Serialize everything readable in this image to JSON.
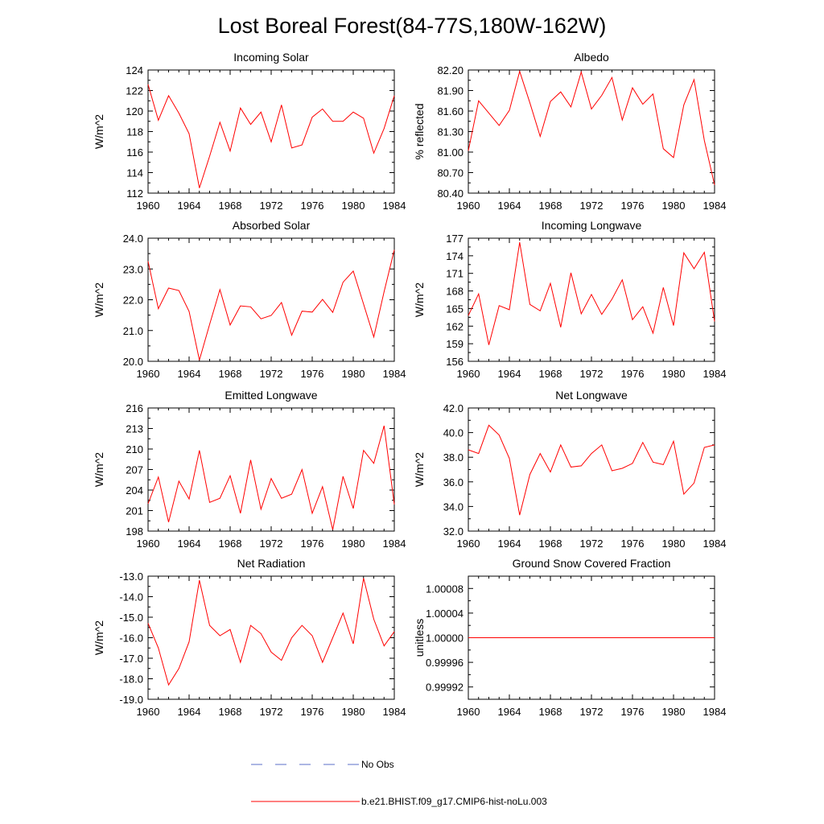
{
  "figure": {
    "title": "Lost Boreal Forest(84-77S,180W-162W)"
  },
  "legend": [
    {
      "label": "No Obs",
      "color": "#5b6fc9",
      "dash": "dashed"
    },
    {
      "label": "b.e21.BHIST.f09_g17.CMIP6-hist-noLu.003",
      "color": "#ff0000",
      "dash": "solid"
    }
  ],
  "chart_data": [
    {
      "type": "line",
      "title": "Incoming Solar",
      "ylabel": "W/m^2",
      "xlim": [
        1960,
        1984
      ],
      "ylim": [
        112,
        124
      ],
      "xticks": [
        1960,
        1964,
        1968,
        1972,
        1976,
        1980,
        1984
      ],
      "yticks": [
        "112",
        "114",
        "116",
        "118",
        "120",
        "122",
        "124"
      ],
      "series": [
        {
          "color": "#ff0000",
          "x": [
            1960,
            1961,
            1962,
            1963,
            1964,
            1965,
            1966,
            1967,
            1968,
            1969,
            1970,
            1971,
            1972,
            1973,
            1974,
            1975,
            1976,
            1977,
            1978,
            1979,
            1980,
            1981,
            1982,
            1983,
            1984
          ],
          "values": [
            122.6,
            119.1,
            121.5,
            119.8,
            117.8,
            112.5,
            115.6,
            118.9,
            116.1,
            120.3,
            118.7,
            119.9,
            117.0,
            120.6,
            116.4,
            116.7,
            119.4,
            120.2,
            119.0,
            119.0,
            119.9,
            119.3,
            115.9,
            118.3,
            121.5
          ]
        }
      ]
    },
    {
      "type": "line",
      "title": "Albedo",
      "ylabel": "% reflected",
      "xlim": [
        1960,
        1984
      ],
      "ylim": [
        80.4,
        82.2
      ],
      "xticks": [
        1960,
        1964,
        1968,
        1972,
        1976,
        1980,
        1984
      ],
      "yticks": [
        "80.40",
        "80.70",
        "81.00",
        "81.30",
        "81.60",
        "81.90",
        "82.20"
      ],
      "series": [
        {
          "color": "#ff0000",
          "x": [
            1960,
            1961,
            1962,
            1963,
            1964,
            1965,
            1966,
            1967,
            1968,
            1969,
            1970,
            1971,
            1972,
            1973,
            1974,
            1975,
            1976,
            1977,
            1978,
            1979,
            1980,
            1981,
            1982,
            1983,
            1984
          ],
          "values": [
            81.02,
            81.75,
            81.57,
            81.39,
            81.61,
            82.18,
            81.72,
            81.23,
            81.74,
            81.88,
            81.66,
            82.17,
            81.63,
            81.83,
            82.09,
            81.47,
            81.94,
            81.7,
            81.85,
            81.05,
            80.92,
            81.69,
            82.06,
            81.17,
            80.52
          ]
        }
      ]
    },
    {
      "type": "line",
      "title": "Absorbed Solar",
      "ylabel": "W/m^2",
      "xlim": [
        1960,
        1984
      ],
      "ylim": [
        20,
        24
      ],
      "xticks": [
        1960,
        1964,
        1968,
        1972,
        1976,
        1980,
        1984
      ],
      "yticks": [
        "20.0",
        "21.0",
        "22.0",
        "23.0",
        "24.0"
      ],
      "series": [
        {
          "color": "#ff0000",
          "x": [
            1960,
            1961,
            1962,
            1963,
            1964,
            1965,
            1966,
            1967,
            1968,
            1969,
            1970,
            1971,
            1972,
            1973,
            1974,
            1975,
            1976,
            1977,
            1978,
            1979,
            1980,
            1981,
            1982,
            1983,
            1984
          ],
          "values": [
            23.25,
            21.71,
            22.38,
            22.3,
            21.62,
            20.04,
            21.2,
            22.33,
            21.18,
            21.8,
            21.77,
            21.38,
            21.49,
            21.91,
            20.85,
            21.63,
            21.6,
            22.01,
            21.59,
            22.57,
            22.93,
            21.86,
            20.79,
            22.26,
            23.62
          ]
        }
      ]
    },
    {
      "type": "line",
      "title": "Incoming Longwave",
      "ylabel": "W/m^2",
      "xlim": [
        1960,
        1984
      ],
      "ylim": [
        156,
        177
      ],
      "xticks": [
        1960,
        1964,
        1968,
        1972,
        1976,
        1980,
        1984
      ],
      "yticks": [
        "156",
        "159",
        "162",
        "165",
        "168",
        "171",
        "174",
        "177"
      ],
      "series": [
        {
          "color": "#ff0000",
          "x": [
            1960,
            1961,
            1962,
            1963,
            1964,
            1965,
            1966,
            1967,
            1968,
            1969,
            1970,
            1971,
            1972,
            1973,
            1974,
            1975,
            1976,
            1977,
            1978,
            1979,
            1980,
            1981,
            1982,
            1983,
            1984
          ],
          "values": [
            163.8,
            167.5,
            158.8,
            165.5,
            164.8,
            176.3,
            165.7,
            164.6,
            169.3,
            161.8,
            171.1,
            164.1,
            167.4,
            164.0,
            166.6,
            169.9,
            163.1,
            165.3,
            160.8,
            168.6,
            162.1,
            174.5,
            171.8,
            174.6,
            162.8
          ]
        }
      ]
    },
    {
      "type": "line",
      "title": "Emitted Longwave",
      "ylabel": "W/m^2",
      "xlim": [
        1960,
        1984
      ],
      "ylim": [
        198,
        216
      ],
      "xticks": [
        1960,
        1964,
        1968,
        1972,
        1976,
        1980,
        1984
      ],
      "yticks": [
        "198",
        "201",
        "204",
        "207",
        "210",
        "213",
        "216"
      ],
      "series": [
        {
          "color": "#ff0000",
          "x": [
            1960,
            1961,
            1962,
            1963,
            1964,
            1965,
            1966,
            1967,
            1968,
            1969,
            1970,
            1971,
            1972,
            1973,
            1974,
            1975,
            1976,
            1977,
            1978,
            1979,
            1980,
            1981,
            1982,
            1983,
            1984
          ],
          "values": [
            202.0,
            205.9,
            199.3,
            205.3,
            202.7,
            209.8,
            202.2,
            202.8,
            206.1,
            200.6,
            208.4,
            201.2,
            205.7,
            202.8,
            203.4,
            207.0,
            200.6,
            204.5,
            198.2,
            206.0,
            201.3,
            209.8,
            207.9,
            213.4,
            201.9
          ]
        }
      ]
    },
    {
      "type": "line",
      "title": "Net Longwave",
      "ylabel": "W/m^2",
      "xlim": [
        1960,
        1984
      ],
      "ylim": [
        32,
        42
      ],
      "xticks": [
        1960,
        1964,
        1968,
        1972,
        1976,
        1980,
        1984
      ],
      "yticks": [
        "32.0",
        "34.0",
        "36.0",
        "38.0",
        "40.0",
        "42.0"
      ],
      "series": [
        {
          "color": "#ff0000",
          "x": [
            1960,
            1961,
            1962,
            1963,
            1964,
            1965,
            1966,
            1967,
            1968,
            1969,
            1970,
            1971,
            1972,
            1973,
            1974,
            1975,
            1976,
            1977,
            1978,
            1979,
            1980,
            1981,
            1982,
            1983,
            1984
          ],
          "values": [
            38.6,
            38.3,
            40.6,
            39.8,
            37.9,
            33.3,
            36.6,
            38.3,
            36.8,
            39.0,
            37.2,
            37.3,
            38.3,
            39.0,
            36.9,
            37.1,
            37.5,
            39.2,
            37.6,
            37.4,
            39.3,
            35.0,
            35.9,
            38.8,
            39.0
          ]
        }
      ]
    },
    {
      "type": "line",
      "title": "Net Radiation",
      "ylabel": "W/m^2",
      "xlim": [
        1960,
        1984
      ],
      "ylim": [
        -19,
        -13
      ],
      "xticks": [
        1960,
        1964,
        1968,
        1972,
        1976,
        1980,
        1984
      ],
      "yticks": [
        "-19.0",
        "-18.0",
        "-17.0",
        "-16.0",
        "-15.0",
        "-14.0",
        "-13.0"
      ],
      "series": [
        {
          "color": "#ff0000",
          "x": [
            1960,
            1961,
            1962,
            1963,
            1964,
            1965,
            1966,
            1967,
            1968,
            1969,
            1970,
            1971,
            1972,
            1973,
            1974,
            1975,
            1976,
            1977,
            1978,
            1979,
            1980,
            1981,
            1982,
            1983,
            1984
          ],
          "values": [
            -15.3,
            -16.5,
            -18.3,
            -17.5,
            -16.2,
            -13.2,
            -15.4,
            -15.9,
            -15.6,
            -17.2,
            -15.4,
            -15.8,
            -16.7,
            -17.1,
            -16.0,
            -15.4,
            -15.9,
            -17.2,
            -16.0,
            -14.8,
            -16.3,
            -13.1,
            -15.1,
            -16.4,
            -15.7
          ]
        }
      ]
    },
    {
      "type": "line",
      "title": "Ground Snow Covered Fraction",
      "ylabel": "unitless",
      "xlim": [
        1960,
        1984
      ],
      "ylim": [
        0.9999,
        1.0001
      ],
      "xticks": [
        1960,
        1964,
        1968,
        1972,
        1976,
        1980,
        1984
      ],
      "ytick_values": [
        0.99992,
        0.99996,
        1.0,
        1.00004,
        1.00008
      ],
      "yticks": [
        "0.99992",
        "0.99996",
        "1.00000",
        "1.00004",
        "1.00008"
      ],
      "series": [
        {
          "color": "#ff0000",
          "x": [
            1960,
            1984
          ],
          "values": [
            1.0,
            1.0
          ]
        }
      ]
    }
  ]
}
